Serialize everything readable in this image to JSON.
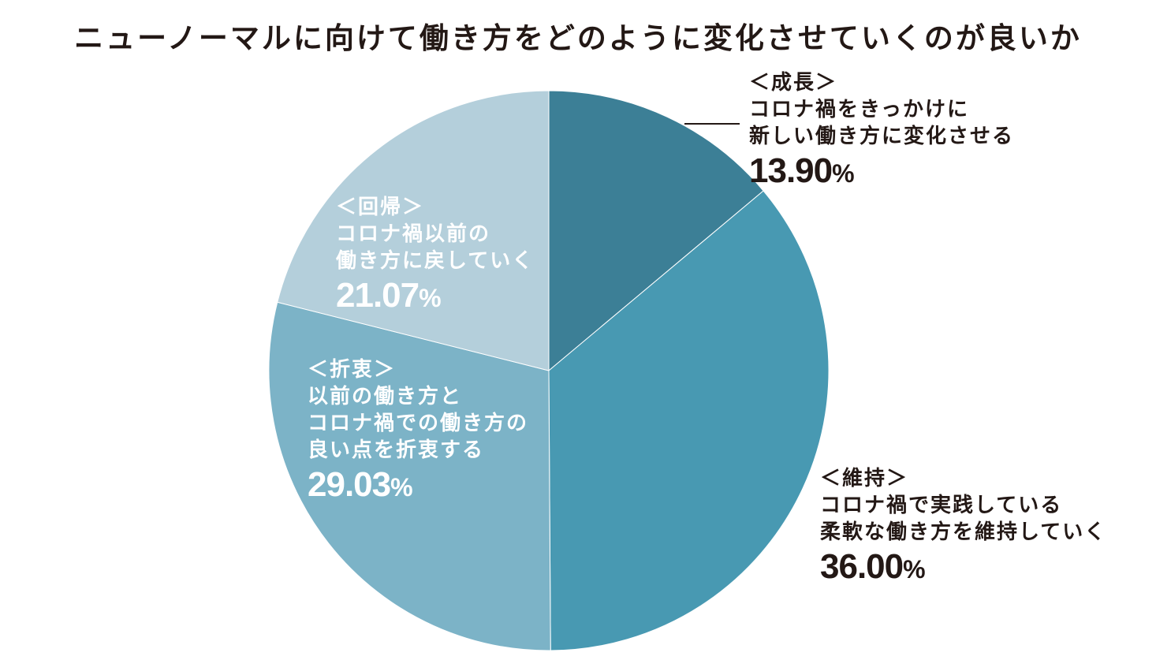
{
  "chart_data": {
    "type": "pie",
    "title": "ニューノーマルに向けて働き方をどのように変化させていくのが良いか",
    "start_angle_deg": 0,
    "direction": "clockwise",
    "slices": [
      {
        "category": "＜成長＞",
        "description": [
          "コロナ禍をきっかけに",
          "新しい働き方に変化させる"
        ],
        "value": 13.9,
        "value_text": "13.90",
        "color": "#3c7f96",
        "label_color": "#231815"
      },
      {
        "category": "＜維持＞",
        "description": [
          "コロナ禍で実践している",
          "柔軟な働き方を維持していく"
        ],
        "value": 36.0,
        "value_text": "36.00",
        "color": "#4899b2",
        "label_color": "#231815"
      },
      {
        "category": "＜折衷＞",
        "description": [
          "以前の働き方と",
          "コロナ禍での働き方の",
          "良い点を折衷する"
        ],
        "value": 29.03,
        "value_text": "29.03",
        "color": "#7cb3c7",
        "label_color": "#ffffff"
      },
      {
        "category": "＜回帰＞",
        "description": [
          "コロナ禍以前の",
          "働き方に戻していく"
        ],
        "value": 21.07,
        "value_text": "21.07",
        "color": "#b4cfdb",
        "label_color": "#ffffff"
      }
    ],
    "unit": "%",
    "legend": "none"
  }
}
